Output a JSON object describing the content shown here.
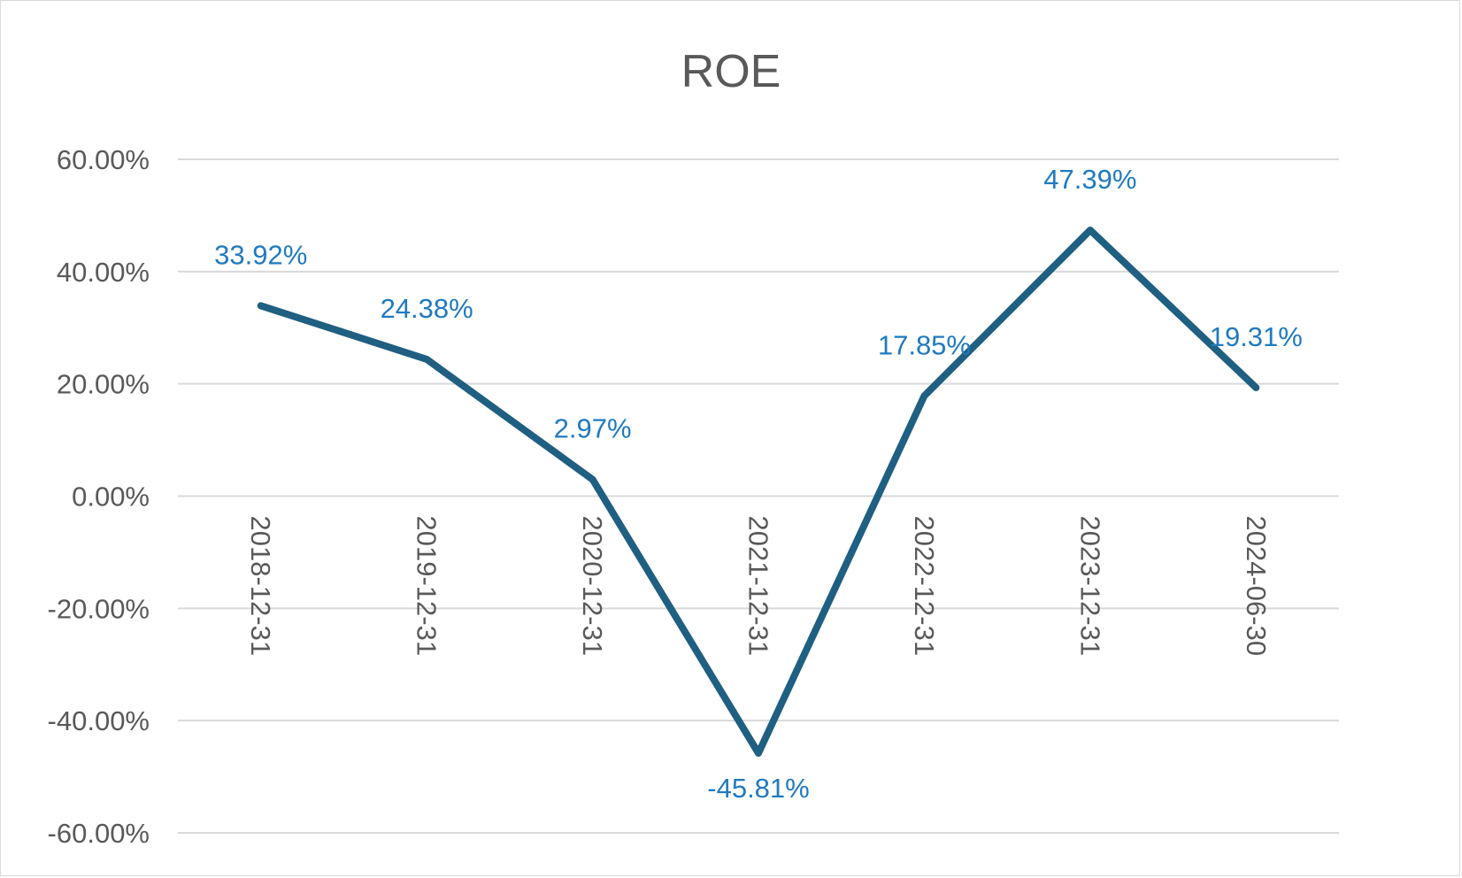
{
  "chart_data": {
    "type": "line",
    "title": "ROE",
    "xlabel": "",
    "ylabel": "",
    "categories": [
      "2018-12-31",
      "2019-12-31",
      "2020-12-31",
      "2021-12-31",
      "2022-12-31",
      "2023-12-31",
      "2024-06-30"
    ],
    "series": [
      {
        "values": [
          33.92,
          24.38,
          2.97,
          -45.81,
          17.85,
          47.39,
          19.31
        ],
        "labels": [
          "33.92%",
          "24.38%",
          "2.97%",
          "-45.81%",
          "17.85%",
          "47.39%",
          "19.31%"
        ],
        "color": "#1f5f82"
      }
    ],
    "ylim": [
      -60,
      60
    ],
    "yticks": [
      60,
      40,
      20,
      0,
      -20,
      -40,
      -60
    ],
    "ytick_labels": [
      "60.00%",
      "40.00%",
      "20.00%",
      "0.00%",
      "-20.00%",
      "-40.00%",
      "-60.00%"
    ],
    "grid": true,
    "legend": "none",
    "colors": {
      "line": "#1f5f82",
      "data_label": "#1f7ac0",
      "grid": "#d9d9d9",
      "text": "#595959"
    }
  }
}
